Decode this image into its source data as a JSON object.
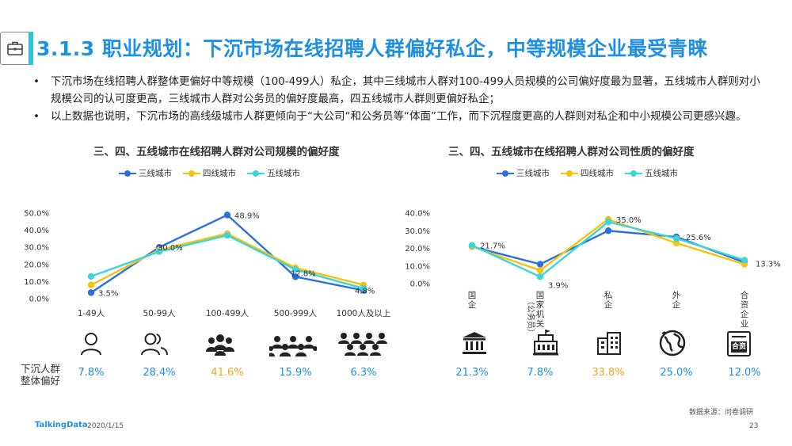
{
  "header": {
    "title": "3.1.3 职业规划：下沉市场在线招聘人群偏好私企，中等规模企业最受青睐",
    "bullets": [
      "下沉市场在线招聘人群整体更偏好中等规模（100-499人）私企，其中三线城市人群对100-499人员规模的公司偏好度最为显著，五线城市人群则对小规模公司的认可度更高，三线城市人群对公务员的偏好度最高，四五线城市人群则更偏好私企；",
      "以上数据也说明，下沉市场的高线级城市人群更倾向于“大公司“和公务员等“体面”工作，而下沉程度更高的人群则对私企和中小规模公司更感兴趣。"
    ],
    "bullet_mark": "•"
  },
  "colors": {
    "series1": "#2a6fdb",
    "series2": "#f5c211",
    "series3": "#3dd5d8",
    "accent": "#1f8fe0",
    "orange": "#f5a623"
  },
  "chart_data": [
    {
      "type": "line",
      "title": "三、四、五线城市在线招聘人群对公司规模的偏好度",
      "categories": [
        "1-49人",
        "50-99人",
        "100-499人",
        "500-999人",
        "1000人及以上"
      ],
      "series": [
        {
          "name": "三线城市",
          "values": [
            3.5,
            30.0,
            48.9,
            12.8,
            4.8
          ]
        },
        {
          "name": "四线城市",
          "values": [
            8.0,
            28.5,
            38.0,
            18.0,
            8.0
          ]
        },
        {
          "name": "五线城市",
          "values": [
            13.0,
            27.5,
            37.0,
            17.0,
            6.0
          ]
        }
      ],
      "data_labels": [
        "3.5%",
        "30.0%",
        "48.9%",
        "12.8%",
        "4.8%"
      ],
      "yticks": [
        "0.0%",
        "10.0%",
        "20.0%",
        "30.0%",
        "40.0%",
        "50.0%"
      ],
      "ylim": [
        0,
        50
      ],
      "legend_position": "top",
      "grid": false,
      "overall_label": "下沉人群\n整体偏好",
      "overall_values": [
        "7.8%",
        "28.4%",
        "41.6%",
        "15.9%",
        "6.3%"
      ],
      "icons": [
        "person-icon",
        "two-people-icon",
        "group-icon",
        "crowd-icon",
        "large-crowd-icon"
      ]
    },
    {
      "type": "line",
      "title": "三、四、五线城市在线招聘人群对公司性质的偏好度",
      "categories": [
        "国企",
        "国家机关（公务员）",
        "私企",
        "外企",
        "合资企业"
      ],
      "category_lines": [
        [
          "国",
          "企"
        ],
        [
          "国",
          "家",
          "机",
          "关"
        ],
        [
          "私",
          "企"
        ],
        [
          "外",
          "企"
        ],
        [
          "合",
          "资",
          "企",
          "业"
        ]
      ],
      "category_sub": [
        "",
        "（公务员）",
        "",
        "",
        ""
      ],
      "series": [
        {
          "name": "三线城市",
          "values": [
            21.0,
            11.0,
            30.0,
            26.5,
            12.0
          ]
        },
        {
          "name": "四线城市",
          "values": [
            21.0,
            7.5,
            36.5,
            23.0,
            11.0
          ]
        },
        {
          "name": "五线城市",
          "values": [
            21.7,
            3.9,
            35.0,
            25.6,
            13.3
          ]
        }
      ],
      "data_labels": [
        "21.7%",
        "3.9%",
        "35.0%",
        "25.6%",
        "13.3%"
      ],
      "yticks": [
        "0.0%",
        "10.0%",
        "20.0%",
        "30.0%",
        "40.0%"
      ],
      "ylim": [
        0,
        40
      ],
      "legend_position": "top",
      "grid": false,
      "overall_values": [
        "21.3%",
        "7.8%",
        "33.8%",
        "25.0%",
        "12.0%"
      ],
      "overall_colors": [
        "#1f8fe0",
        "#1f8fe0",
        "#f5a623",
        "#1f8fe0",
        "#1f8fe0"
      ],
      "icons": [
        "bank-icon",
        "government-building-icon",
        "office-building-icon",
        "globe-icon",
        "joint-venture-icon"
      ],
      "jv_badge": "合资"
    }
  ],
  "footer": {
    "source": "数据来源：问卷调研",
    "brand": "TalkingData",
    "date": "2020/1/15",
    "page": "23"
  }
}
